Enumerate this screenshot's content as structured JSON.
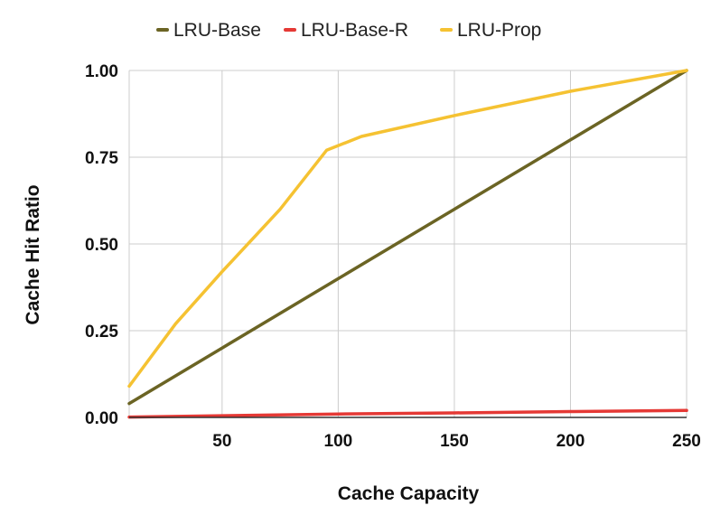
{
  "chart_data": {
    "type": "line",
    "title": "",
    "xlabel": "Cache Capacity",
    "ylabel": "Cache Hit Ratio",
    "xlim": [
      10,
      250
    ],
    "ylim": [
      0,
      1
    ],
    "xticks": [
      50,
      100,
      150,
      200,
      250
    ],
    "yticks": [
      0,
      0.25,
      0.5,
      0.75,
      1
    ],
    "ytick_labels": [
      "0.00",
      "0.25",
      "0.50",
      "0.75",
      "1.00"
    ],
    "grid": true,
    "legend_position": "top",
    "series": [
      {
        "name": "LRU-Base",
        "color": "#6b6424",
        "x": [
          10,
          50,
          100,
          150,
          200,
          250
        ],
        "values": [
          0.04,
          0.2,
          0.4,
          0.6,
          0.8,
          1.0
        ]
      },
      {
        "name": "LRU-Base-R",
        "color": "#e53935",
        "x": [
          10,
          50,
          100,
          150,
          200,
          250
        ],
        "values": [
          0.001,
          0.005,
          0.01,
          0.013,
          0.017,
          0.02
        ]
      },
      {
        "name": "LRU-Prop",
        "color": "#f5c232",
        "x": [
          10,
          30,
          50,
          75,
          95,
          110,
          150,
          200,
          250
        ],
        "values": [
          0.09,
          0.27,
          0.42,
          0.6,
          0.77,
          0.81,
          0.87,
          0.94,
          1.0
        ]
      }
    ]
  }
}
